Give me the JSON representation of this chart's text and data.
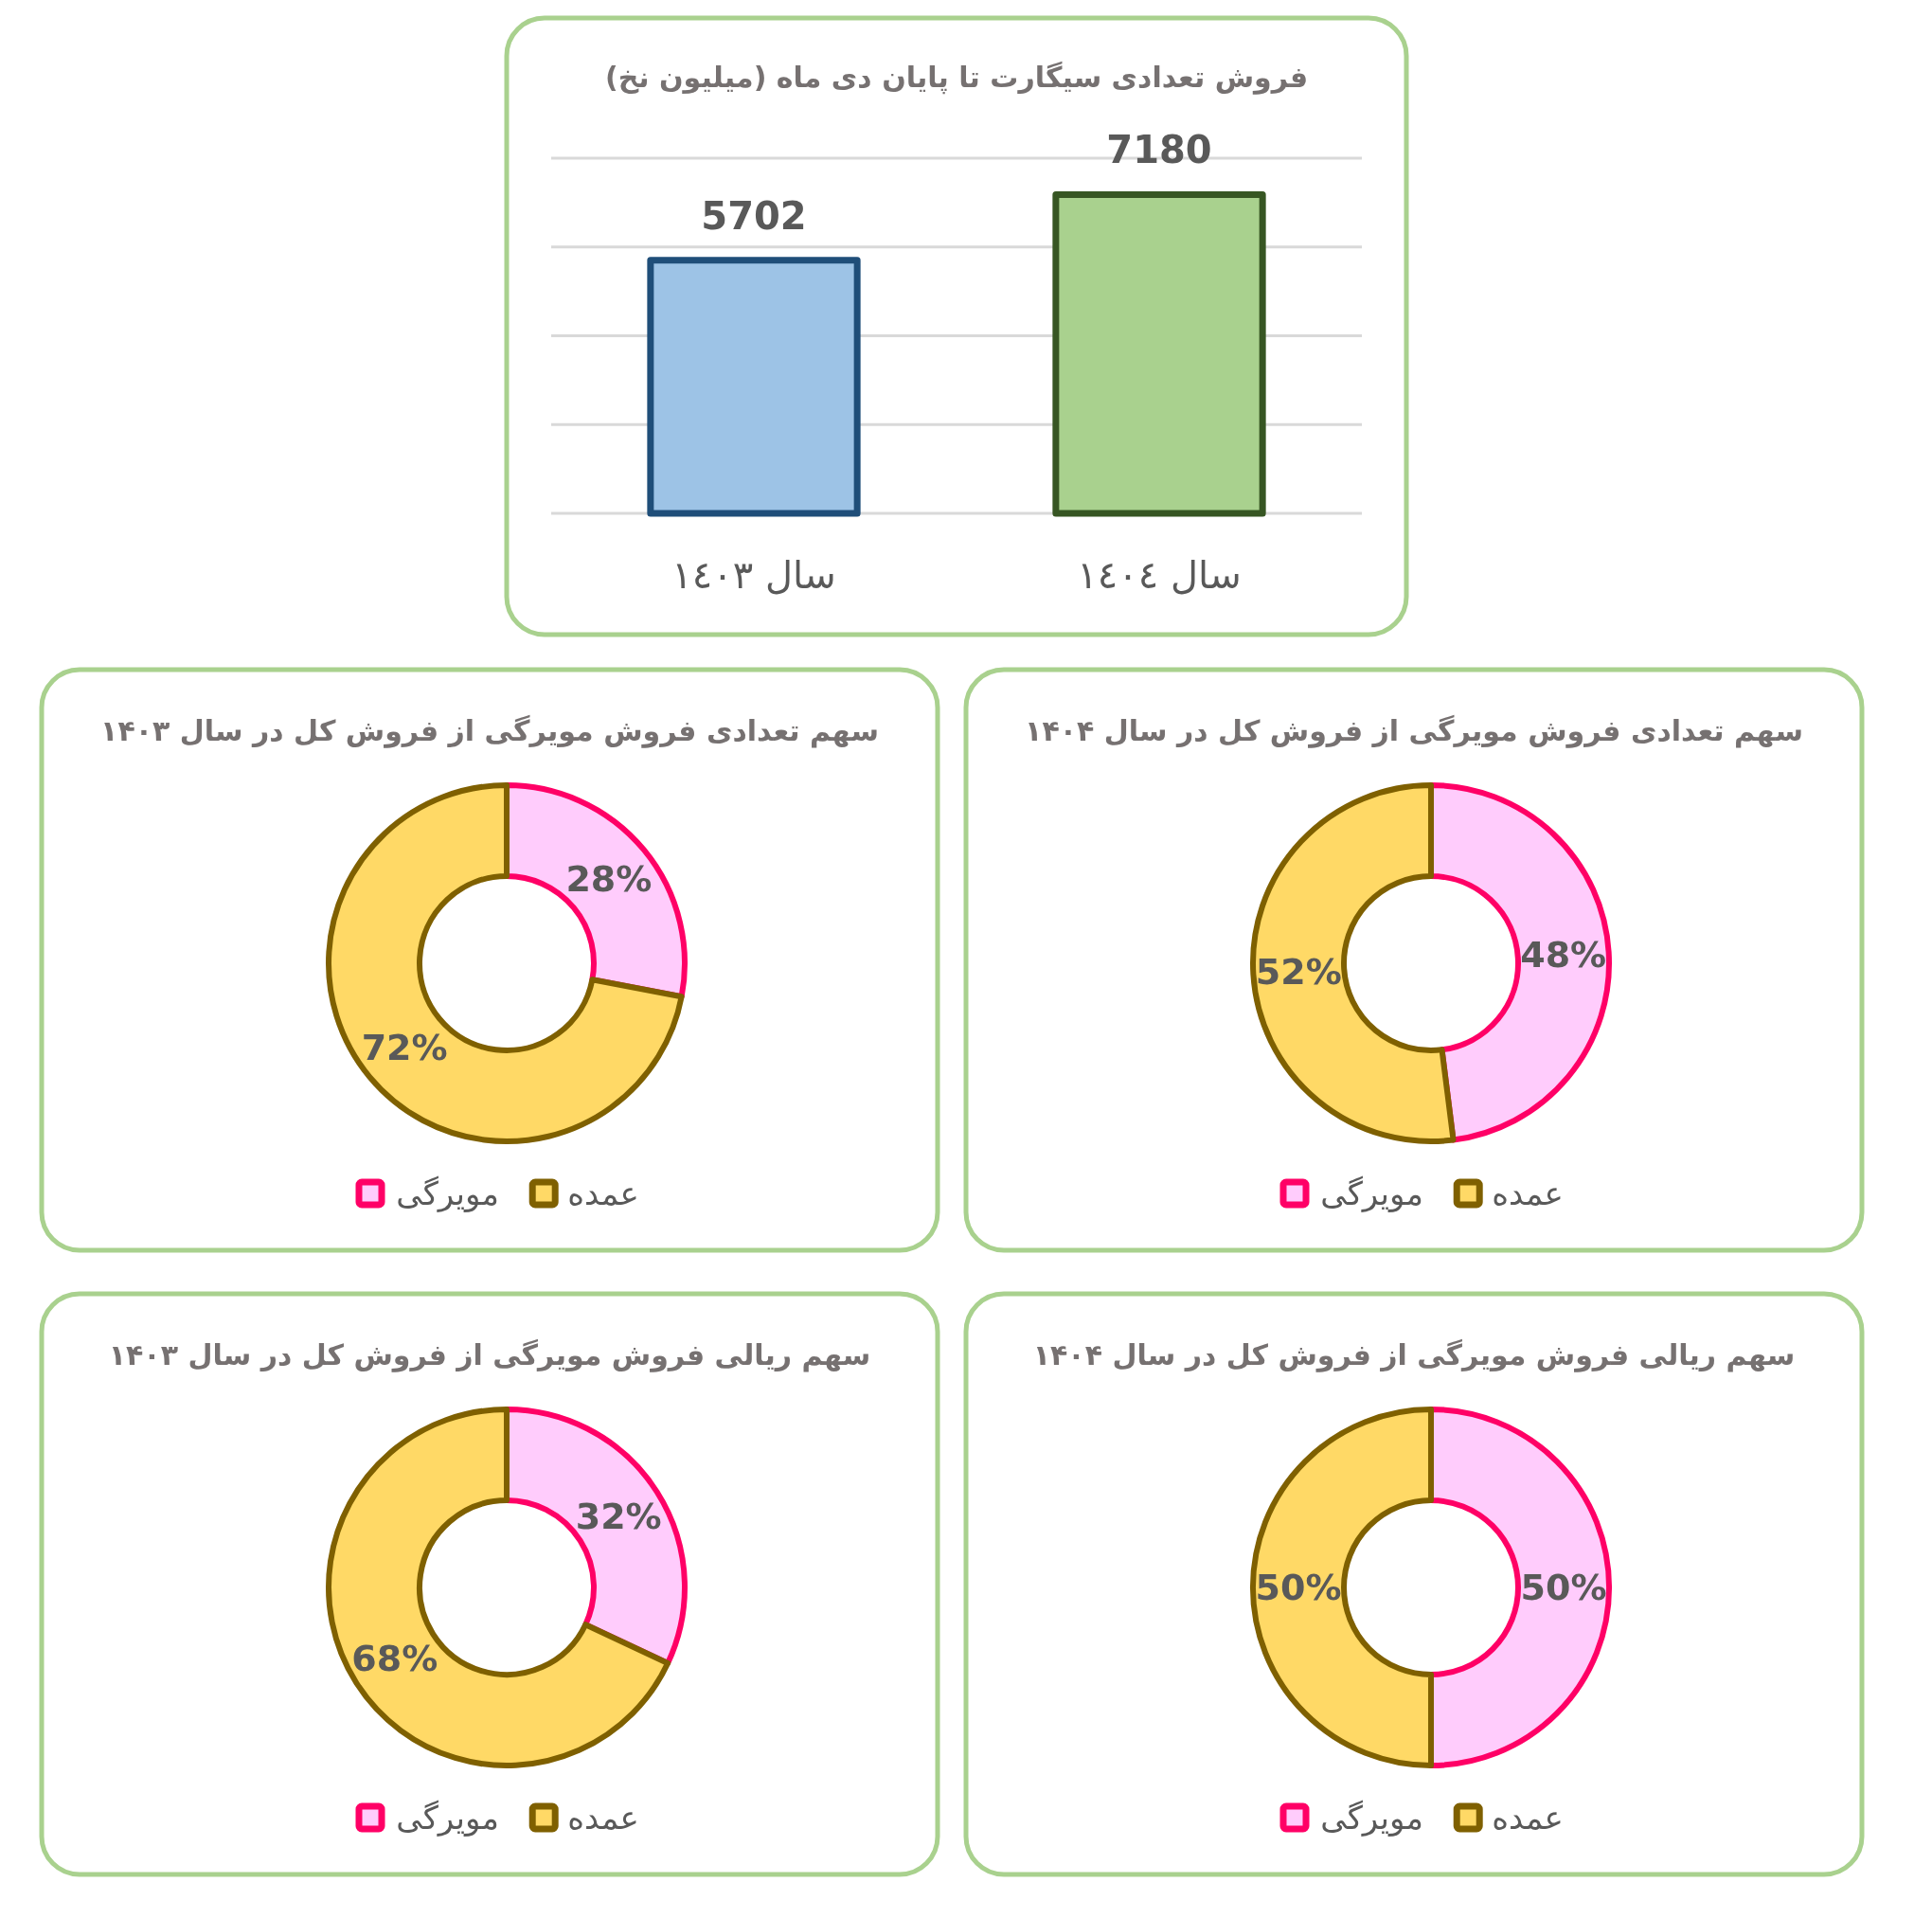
{
  "chart_data": [
    {
      "type": "bar",
      "title": "فروش تعدادی سیگارت تا پایان دی ماه (میلیون نخ)",
      "categories": [
        "سال ١٤٠٣",
        "سال ١٤٠٤"
      ],
      "values": [
        5702,
        7180
      ],
      "colors": [
        "#9dc3e6",
        "#a9d18e"
      ],
      "ylim": [
        0,
        8000
      ],
      "yticks": [
        {
          "value": 0,
          "label": null
        },
        {
          "value": 2000,
          "label": null
        },
        {
          "value": 4000,
          "label": null
        },
        {
          "value": 6000,
          "label": null
        },
        {
          "value": 8000,
          "label": null
        }
      ],
      "grid": "y",
      "tick_labels": "x",
      "data_labels": true
    },
    {
      "type": "donut",
      "title": "سهم تعدادی فروش مویرگی از فروش کل در سال ۱۴۰۳",
      "categories": [
        "مویرگی",
        "عمده"
      ],
      "values": [
        28,
        72
      ],
      "colors": [
        "#ffccfc",
        "#ffd966"
      ],
      "value_labels": [
        "28%",
        "72%"
      ],
      "legend": "bottom"
    },
    {
      "type": "donut",
      "title": "سهم تعدادی فروش مویرگی از فروش کل در سال ۱۴۰۴",
      "categories": [
        "مویرگی",
        "عمده"
      ],
      "values": [
        48,
        52
      ],
      "colors": [
        "#ffccfc",
        "#ffd966"
      ],
      "value_labels": [
        "48%",
        "52%"
      ],
      "legend": "bottom"
    },
    {
      "type": "donut",
      "title": "سهم ریالی فروش مویرگی از فروش کل در سال ۱۴۰۳",
      "categories": [
        "مویرگی",
        "عمده"
      ],
      "values": [
        32,
        68
      ],
      "colors": [
        "#ffccfc",
        "#ffd966"
      ],
      "value_labels": [
        "32%",
        "68%"
      ],
      "legend": "bottom"
    },
    {
      "type": "donut",
      "title": "سهم ریالی فروش مویرگی از فروش کل در سال ۱۴۰۴",
      "categories": [
        "مویرگی",
        "عمده"
      ],
      "values": [
        50,
        50
      ],
      "colors": [
        "#ffccfc",
        "#ffd966"
      ],
      "value_labels": [
        "50%",
        "50%"
      ],
      "legend": "bottom"
    }
  ]
}
